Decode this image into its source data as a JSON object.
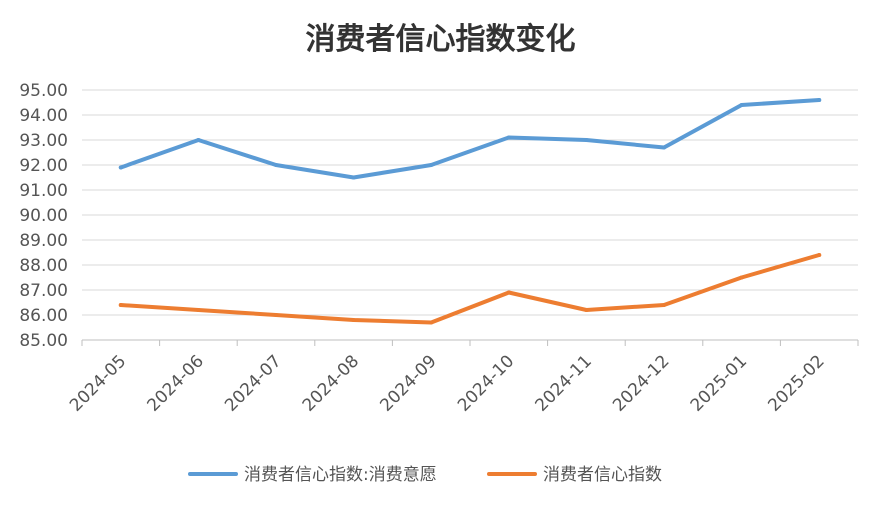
{
  "chart_data": {
    "type": "line",
    "title": "消费者信心指数变化",
    "categories": [
      "2024-05",
      "2024-06",
      "2024-07",
      "2024-08",
      "2024-09",
      "2024-10",
      "2024-11",
      "2024-12",
      "2025-01",
      "2025-02"
    ],
    "ylim": [
      85,
      95
    ],
    "yticks": [
      "85.00",
      "86.00",
      "87.00",
      "88.00",
      "89.00",
      "90.00",
      "91.00",
      "92.00",
      "93.00",
      "94.00",
      "95.00"
    ],
    "grid": true,
    "legend_position": "bottom",
    "series": [
      {
        "name": "消费者信心指数:消费意愿",
        "color": "#5B9BD5",
        "values": [
          91.9,
          93.0,
          92.0,
          91.5,
          92.0,
          93.1,
          93.0,
          92.7,
          94.4,
          94.6
        ]
      },
      {
        "name": "消费者信心指数",
        "color": "#ED7D31",
        "values": [
          86.4,
          86.2,
          86.0,
          85.8,
          85.7,
          86.9,
          86.2,
          86.4,
          87.5,
          88.4
        ]
      }
    ]
  }
}
